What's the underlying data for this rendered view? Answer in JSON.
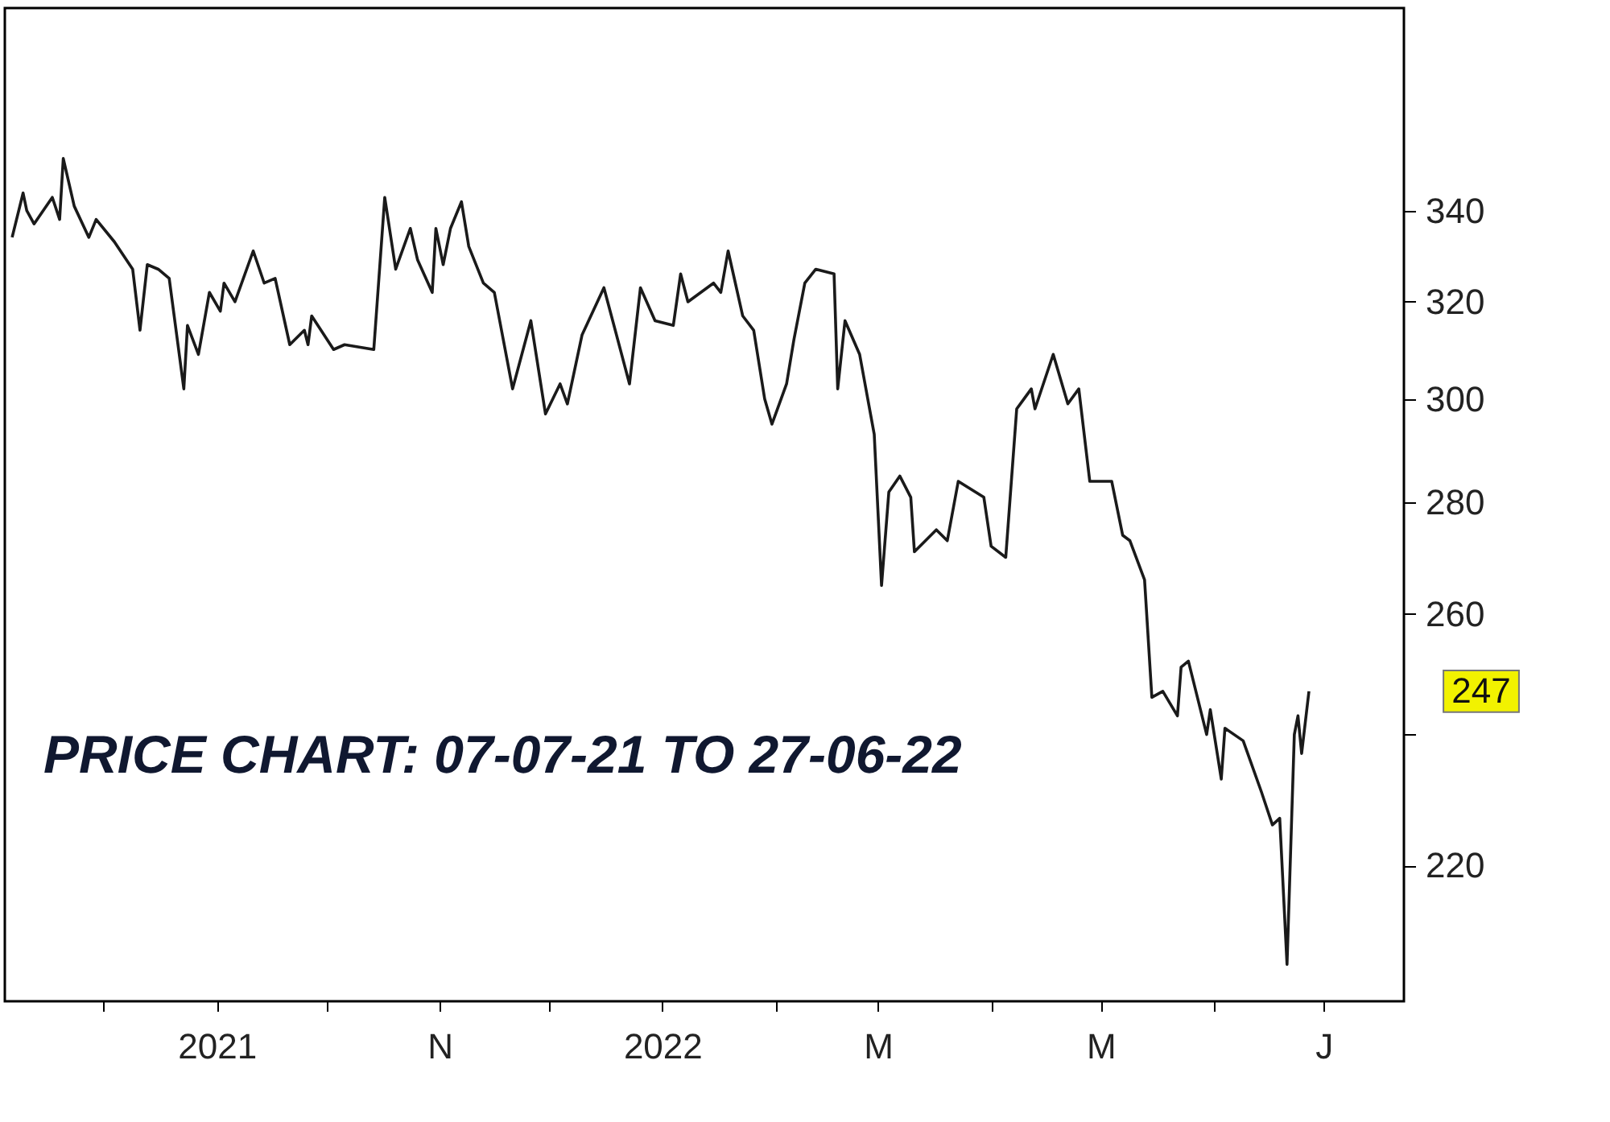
{
  "chart_data": {
    "type": "line",
    "x": [
      "2021-07-07",
      "2021-07-10",
      "2021-07-11",
      "2021-07-13",
      "2021-07-18",
      "2021-07-20",
      "2021-07-21",
      "2021-07-24",
      "2021-07-28",
      "2021-07-30",
      "2021-08-04",
      "2021-08-09",
      "2021-08-11",
      "2021-08-13",
      "2021-08-16",
      "2021-08-19",
      "2021-08-23",
      "2021-08-24",
      "2021-08-27",
      "2021-08-30",
      "2021-09-02",
      "2021-09-03",
      "2021-09-06",
      "2021-09-11",
      "2021-09-14",
      "2021-09-17",
      "2021-09-21",
      "2021-09-25",
      "2021-09-26",
      "2021-09-27",
      "2021-10-03",
      "2021-10-06",
      "2021-10-14",
      "2021-10-17",
      "2021-10-20",
      "2021-10-24",
      "2021-10-26",
      "2021-10-30",
      "2021-10-31",
      "2021-11-02",
      "2021-11-04",
      "2021-11-07",
      "2021-11-09",
      "2021-11-13",
      "2021-11-16",
      "2021-11-21",
      "2021-11-26",
      "2021-11-30",
      "2021-12-04",
      "2021-12-06",
      "2021-12-10",
      "2021-12-16",
      "2021-12-23",
      "2021-12-26",
      "2021-12-30",
      "2022-01-04",
      "2022-01-06",
      "2022-01-08",
      "2022-01-15",
      "2022-01-17",
      "2022-01-19",
      "2022-01-23",
      "2022-01-26",
      "2022-01-29",
      "2022-01-31",
      "2022-02-04",
      "2022-02-06",
      "2022-02-09",
      "2022-02-12",
      "2022-02-17",
      "2022-02-18",
      "2022-02-20",
      "2022-02-24",
      "2022-02-28",
      "2022-03-02",
      "2022-03-04",
      "2022-03-07",
      "2022-03-10",
      "2022-03-11",
      "2022-03-17",
      "2022-03-20",
      "2022-03-23",
      "2022-03-30",
      "2022-04-01",
      "2022-04-05",
      "2022-04-08",
      "2022-04-12",
      "2022-04-13",
      "2022-04-18",
      "2022-04-22",
      "2022-04-25",
      "2022-04-28",
      "2022-05-04",
      "2022-05-07",
      "2022-05-09",
      "2022-05-13",
      "2022-05-15",
      "2022-05-18",
      "2022-05-22",
      "2022-05-23",
      "2022-05-25",
      "2022-05-30",
      "2022-05-31",
      "2022-06-03",
      "2022-06-04",
      "2022-06-09",
      "2022-06-14",
      "2022-06-17",
      "2022-06-19",
      "2022-06-21",
      "2022-06-23",
      "2022-06-24",
      "2022-06-25",
      "2022-06-27"
    ],
    "series": [
      {
        "color": "#1a1a1a",
        "values": [
          334,
          344,
          340,
          337,
          343,
          338,
          352,
          341,
          334,
          338,
          333,
          327,
          314,
          328,
          327,
          325,
          302,
          315,
          309,
          322,
          318,
          324,
          320,
          331,
          324,
          325,
          311,
          314,
          311,
          317,
          310,
          311,
          310,
          343,
          327,
          336,
          329,
          322,
          336,
          328,
          336,
          342,
          332,
          324,
          322,
          302,
          316,
          297,
          303,
          299,
          313,
          323,
          303,
          323,
          316,
          315,
          326,
          320,
          324,
          322,
          331,
          317,
          314,
          300,
          295,
          303,
          312,
          324,
          327,
          326,
          302,
          316,
          309,
          293,
          265,
          282,
          285,
          281,
          271,
          275,
          273,
          284,
          281,
          272,
          270,
          298,
          302,
          298,
          309,
          299,
          302,
          284,
          284,
          274,
          273,
          266,
          246,
          247,
          243,
          251,
          252,
          240,
          244,
          233,
          241,
          239,
          231,
          226,
          227,
          206,
          240,
          243,
          237,
          247
        ]
      }
    ],
    "xlim": [
      "2021-07-05",
      "2022-07-23"
    ],
    "xticks": [
      {
        "value": "2021-08-01",
        "label": null
      },
      {
        "value": "2021-09-01",
        "label": "2021"
      },
      {
        "value": "2021-10-01",
        "label": null
      },
      {
        "value": "2021-11-01",
        "label": "N"
      },
      {
        "value": "2021-12-01",
        "label": null
      },
      {
        "value": "2022-01-01",
        "label": "2022"
      },
      {
        "value": "2022-02-01",
        "label": null
      },
      {
        "value": "2022-03-01",
        "label": "M"
      },
      {
        "value": "2022-04-01",
        "label": null
      },
      {
        "value": "2022-05-01",
        "label": "M"
      },
      {
        "value": "2022-06-01",
        "label": null
      },
      {
        "value": "2022-07-01",
        "label": "J"
      }
    ],
    "ylim": [
      201,
      389
    ],
    "yticks": [
      220,
      {
        "value": 240,
        "label": null
      },
      260,
      280,
      300,
      320,
      340
    ],
    "log": "y",
    "annotations": [
      "PRICE CHART: 07-07-21 TO 27-06-22",
      "247"
    ]
  }
}
